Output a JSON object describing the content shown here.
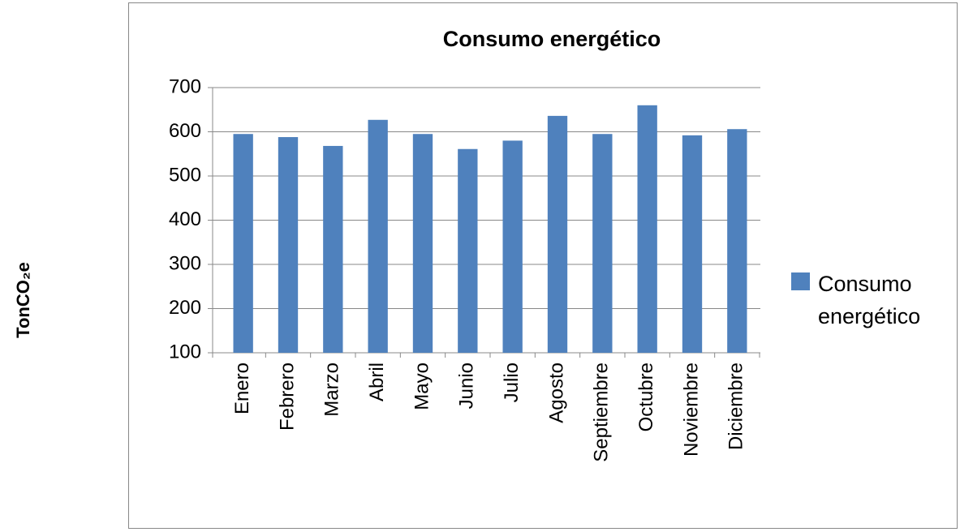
{
  "chart_data": {
    "type": "bar",
    "title": "Consumo energético",
    "y_label": "TonCO₂e",
    "categories": [
      "Enero",
      "Febrero",
      "Marzo",
      "Abril",
      "Mayo",
      "Junio",
      "Julio",
      "Agosto",
      "Septiembre",
      "Octubre",
      "Noviembre",
      "Diciembre"
    ],
    "series": [
      {
        "name": "Consumo energético",
        "color": "#4f81bd",
        "values": [
          595,
          588,
          568,
          627,
          595,
          561,
          580,
          636,
          595,
          660,
          592,
          606
        ]
      }
    ],
    "ylim": [
      100,
      700
    ],
    "yticks": [
      100,
      200,
      300,
      400,
      500,
      600,
      700
    ],
    "grid": true,
    "legend": "right"
  }
}
